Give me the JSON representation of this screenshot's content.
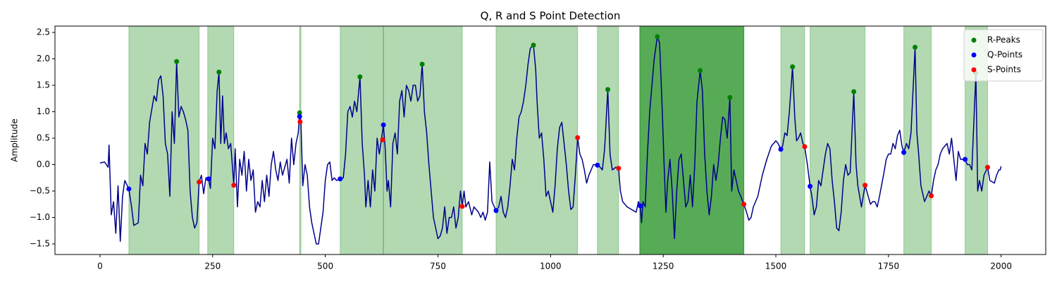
{
  "chart_data": {
    "type": "line",
    "title": "Q, R and S Point Detection",
    "ylabel": "Amplitude",
    "xlim": [
      -100,
      2099
    ],
    "ylim": [
      -1.7,
      2.62
    ],
    "xticks": [
      0,
      250,
      500,
      750,
      1000,
      1250,
      1500,
      1750,
      2000
    ],
    "yticks": [
      {
        "value": -1.5,
        "label": "−1.5"
      },
      {
        "value": -1.0,
        "label": "−1.0"
      },
      {
        "value": -0.5,
        "label": "−0.5"
      },
      {
        "value": 0.0,
        "label": "0.0"
      },
      0.5,
      {
        "value": 1.0,
        "label": "1.0"
      },
      1.5,
      {
        "value": 2.0,
        "label": "2.0"
      },
      2.5
    ],
    "legend": "upper right",
    "span_color": "#008000",
    "spans": [
      {
        "start": 64,
        "end": 220,
        "alpha": 0.3
      },
      {
        "start": 239,
        "end": 297,
        "alpha": 0.3
      },
      {
        "start": 443,
        "end": 446,
        "alpha": 0.3
      },
      {
        "start": 533,
        "end": 629,
        "alpha": 0.3
      },
      {
        "start": 629,
        "end": 804,
        "alpha": 0.3
      },
      {
        "start": 879,
        "end": 1060,
        "alpha": 0.3
      },
      {
        "start": 1104,
        "end": 1151,
        "alpha": 0.3
      },
      {
        "start": 1198,
        "end": 1429,
        "alpha": 0.66
      },
      {
        "start": 1511,
        "end": 1564,
        "alpha": 0.3
      },
      {
        "start": 1576,
        "end": 1698,
        "alpha": 0.3
      },
      {
        "start": 1784,
        "end": 1845,
        "alpha": 0.3
      },
      {
        "start": 1920,
        "end": 1970,
        "alpha": 0.3
      }
    ],
    "series": [
      {
        "type": "line",
        "color": "#00008b",
        "x": [
          0,
          10,
          18,
          20,
          25,
          30,
          35,
          40,
          45,
          50,
          55,
          64,
          70,
          75,
          85,
          90,
          95,
          100,
          105,
          110,
          120,
          125,
          130,
          135,
          140,
          145,
          150,
          155,
          160,
          165,
          170,
          175,
          180,
          185,
          190,
          195,
          200,
          205,
          210,
          215,
          220,
          225,
          230,
          235,
          241,
          245,
          250,
          255,
          260,
          264,
          268,
          272,
          276,
          280,
          285,
          290,
          297,
          300,
          305,
          310,
          315,
          320,
          325,
          330,
          335,
          340,
          345,
          350,
          355,
          360,
          365,
          370,
          375,
          380,
          385,
          390,
          395,
          400,
          405,
          410,
          415,
          420,
          425,
          430,
          435,
          440,
          443,
          446,
          450,
          455,
          460,
          465,
          470,
          480,
          485,
          490,
          495,
          500,
          505,
          510,
          515,
          520,
          525,
          533,
          540,
          545,
          550,
          555,
          560,
          565,
          570,
          577,
          582,
          587,
          590,
          595,
          600,
          605,
          610,
          615,
          620,
          629,
          633,
          637,
          640,
          645,
          650,
          655,
          660,
          665,
          670,
          675,
          680,
          685,
          690,
          695,
          700,
          705,
          710,
          715,
          720,
          725,
          730,
          740,
          750,
          755,
          760,
          765,
          770,
          775,
          780,
          785,
          790,
          795,
          800,
          804,
          808,
          812,
          818,
          825,
          830,
          840,
          845,
          850,
          855,
          860,
          865,
          870,
          879,
          885,
          890,
          895,
          900,
          905,
          910,
          915,
          920,
          925,
          930,
          935,
          940,
          945,
          950,
          955,
          962,
          967,
          970,
          975,
          980,
          985,
          990,
          995,
          1000,
          1005,
          1010,
          1015,
          1020,
          1025,
          1030,
          1035,
          1040,
          1045,
          1050,
          1055,
          1060,
          1065,
          1070,
          1075,
          1080,
          1085,
          1090,
          1095,
          1104,
          1110,
          1115,
          1120,
          1127,
          1132,
          1137,
          1145,
          1151,
          1155,
          1160,
          1170,
          1180,
          1190,
          1195,
          1199,
          1202,
          1205,
          1210,
          1215,
          1220,
          1225,
          1230,
          1237,
          1242,
          1248,
          1252,
          1256,
          1260,
          1265,
          1270,
          1275,
          1280,
          1285,
          1290,
          1295,
          1300,
          1305,
          1310,
          1315,
          1320,
          1325,
          1332,
          1337,
          1342,
          1347,
          1352,
          1357,
          1362,
          1367,
          1372,
          1377,
          1382,
          1387,
          1392,
          1398,
          1402,
          1407,
          1412,
          1417,
          1422,
          1429,
          1435,
          1440,
          1445,
          1450,
          1460,
          1465,
          1470,
          1480,
          1490,
          1500,
          1505,
          1511,
          1515,
          1520,
          1525,
          1530,
          1537,
          1542,
          1546,
          1550,
          1555,
          1560,
          1564,
          1570,
          1576,
          1580,
          1585,
          1590,
          1595,
          1600,
          1605,
          1610,
          1615,
          1620,
          1625,
          1630,
          1635,
          1640,
          1645,
          1650,
          1655,
          1660,
          1665,
          1673,
          1678,
          1682,
          1690,
          1698,
          1705,
          1710,
          1715,
          1720,
          1725,
          1730,
          1740,
          1745,
          1750,
          1755,
          1760,
          1765,
          1770,
          1775,
          1780,
          1784,
          1790,
          1795,
          1800,
          1809,
          1813,
          1817,
          1822,
          1830,
          1840,
          1845,
          1850,
          1855,
          1860,
          1865,
          1870,
          1880,
          1885,
          1890,
          1895,
          1900,
          1905,
          1910,
          1920,
          1925,
          1930,
          1935,
          1938,
          1944,
          1948,
          1952,
          1957,
          1962,
          1970,
          1975,
          1985,
          1990,
          1995,
          1998,
          2000
        ],
        "values": [
          0.03,
          0.05,
          -0.05,
          0.37,
          -0.95,
          -0.7,
          -1.3,
          -0.4,
          -1.45,
          -0.6,
          -0.3,
          -0.46,
          -0.8,
          -1.15,
          -1.1,
          -0.2,
          -0.4,
          0.4,
          0.2,
          0.8,
          1.3,
          1.2,
          1.6,
          1.68,
          1.3,
          0.4,
          0.2,
          -0.6,
          1.0,
          0.4,
          1.95,
          0.9,
          1.1,
          1.0,
          0.85,
          0.65,
          -0.5,
          -1.0,
          -1.2,
          -1.1,
          -0.33,
          -0.2,
          -0.55,
          -0.25,
          -0.27,
          -0.45,
          0.5,
          0.3,
          1.4,
          1.75,
          0.4,
          1.3,
          0.4,
          0.6,
          0.3,
          0.4,
          -0.39,
          0.3,
          -0.8,
          0.1,
          -0.2,
          0.25,
          -0.5,
          0.1,
          -0.3,
          -0.1,
          -0.9,
          -0.7,
          -0.8,
          -0.3,
          -0.7,
          -0.2,
          -0.6,
          0.0,
          0.25,
          -0.1,
          -0.3,
          0.05,
          -0.2,
          -0.05,
          0.1,
          -0.35,
          0.5,
          0.0,
          0.4,
          0.6,
          0.98,
          0.8,
          -0.4,
          0.0,
          -0.2,
          -0.8,
          -1.1,
          -1.5,
          -1.5,
          -1.2,
          -0.9,
          -0.3,
          0.0,
          0.05,
          -0.3,
          -0.25,
          -0.3,
          -0.27,
          -0.25,
          0.2,
          1.0,
          1.1,
          0.9,
          1.2,
          1.0,
          1.66,
          0.4,
          -0.2,
          -0.8,
          -0.3,
          -0.8,
          -0.1,
          -0.5,
          0.5,
          0.2,
          0.75,
          0.3,
          -0.5,
          -0.3,
          -0.8,
          0.4,
          0.6,
          0.2,
          1.2,
          1.4,
          0.9,
          1.5,
          1.4,
          1.2,
          1.5,
          1.5,
          1.2,
          1.3,
          1.9,
          1.0,
          0.6,
          0.0,
          -1.0,
          -1.4,
          -1.35,
          -1.2,
          -0.8,
          -1.3,
          -1.0,
          -1.0,
          -0.8,
          -1.2,
          -1.0,
          -0.5,
          -0.79,
          -0.5,
          -0.8,
          -0.7,
          -0.95,
          -0.8,
          -0.9,
          -1.0,
          -0.9,
          -1.05,
          -0.9,
          0.05,
          -0.7,
          -0.87,
          -0.8,
          -0.6,
          -0.9,
          -1.0,
          -0.8,
          -0.4,
          0.1,
          -0.1,
          0.5,
          0.9,
          1.0,
          1.2,
          1.5,
          1.9,
          2.2,
          2.26,
          1.8,
          1.2,
          0.5,
          0.6,
          0.1,
          -0.6,
          -0.5,
          -0.7,
          -0.9,
          -0.4,
          0.3,
          0.7,
          0.8,
          0.4,
          0.0,
          -0.5,
          -0.85,
          -0.8,
          -0.2,
          0.51,
          0.2,
          0.1,
          -0.1,
          -0.35,
          -0.2,
          -0.1,
          0.0,
          -0.01,
          -0.05,
          -0.1,
          0.3,
          1.42,
          0.2,
          -0.1,
          -0.05,
          -0.07,
          -0.5,
          -0.7,
          -0.8,
          -0.85,
          -0.9,
          -0.7,
          -0.78,
          -1.1,
          -0.7,
          -0.8,
          0.2,
          1.0,
          1.5,
          2.0,
          2.42,
          2.3,
          1.0,
          0.0,
          -0.9,
          -0.3,
          0.1,
          -0.5,
          -1.4,
          -0.5,
          0.1,
          0.2,
          -0.3,
          -0.8,
          -0.7,
          -0.2,
          -0.8,
          0.0,
          1.2,
          1.78,
          1.4,
          0.2,
          -0.5,
          -0.95,
          -0.6,
          0.0,
          -0.3,
          0.0,
          0.5,
          0.9,
          0.85,
          0.5,
          1.27,
          -0.5,
          -0.1,
          -0.3,
          -0.5,
          -0.6,
          -0.75,
          -0.9,
          -1.05,
          -1.0,
          -0.8,
          -0.6,
          -0.4,
          -0.2,
          0.1,
          0.35,
          0.45,
          0.4,
          0.29,
          0.35,
          0.6,
          0.55,
          1.0,
          1.85,
          0.9,
          0.45,
          0.5,
          0.6,
          0.4,
          0.34,
          0.0,
          -0.41,
          -0.6,
          -0.95,
          -0.8,
          -0.3,
          -0.4,
          -0.1,
          0.2,
          0.4,
          0.3,
          -0.3,
          -0.7,
          -1.2,
          -1.25,
          -0.9,
          -0.3,
          0.0,
          -0.2,
          -0.15,
          1.38,
          0.0,
          -0.4,
          -0.8,
          -0.39,
          -0.6,
          -0.75,
          -0.7,
          -0.7,
          -0.8,
          -0.6,
          -0.15,
          0.1,
          0.2,
          0.2,
          0.4,
          0.3,
          0.55,
          0.65,
          0.35,
          0.23,
          0.4,
          0.3,
          0.6,
          2.22,
          0.6,
          0.2,
          -0.4,
          -0.7,
          -0.5,
          -0.59,
          -0.3,
          -0.1,
          0.0,
          0.2,
          0.3,
          0.4,
          0.2,
          0.5,
          0.1,
          -0.3,
          0.25,
          0.1,
          0.1,
          0.0,
          0.0,
          -0.1,
          0.5,
          1.73,
          -0.5,
          -0.3,
          -0.5,
          -0.2,
          -0.05,
          -0.3,
          -0.35,
          -0.2,
          -0.1,
          -0.1,
          -0.03
        ]
      },
      {
        "type": "scatter",
        "name": "R-Peaks",
        "color": "#008000",
        "x": [
          170,
          264,
          443,
          577,
          715,
          962,
          1127,
          1237,
          1332,
          1398,
          1537,
          1673,
          1809,
          1944
        ],
        "values": [
          1.95,
          1.75,
          0.98,
          1.66,
          1.9,
          2.26,
          1.42,
          2.42,
          1.78,
          1.27,
          1.85,
          1.38,
          2.22,
          1.73
        ]
      },
      {
        "type": "scatter",
        "name": "Q-Points",
        "color": "#0000ff",
        "x": [
          64,
          241,
          443,
          533,
          629,
          879,
          1104,
          1199,
          1511,
          1576,
          1784,
          1920
        ],
        "values": [
          -0.46,
          -0.27,
          0.91,
          -0.27,
          0.75,
          -0.87,
          -0.01,
          -0.78,
          0.29,
          -0.41,
          0.23,
          0.1
        ]
      },
      {
        "type": "scatter",
        "name": "S-Points",
        "color": "#ff0000",
        "x": [
          220,
          297,
          444,
          627,
          804,
          1060,
          1151,
          1429,
          1564,
          1698,
          1845,
          1970
        ],
        "values": [
          -0.33,
          -0.39,
          0.81,
          0.47,
          -0.79,
          0.51,
          -0.07,
          -0.75,
          0.34,
          -0.39,
          -0.59,
          -0.05
        ]
      }
    ]
  }
}
